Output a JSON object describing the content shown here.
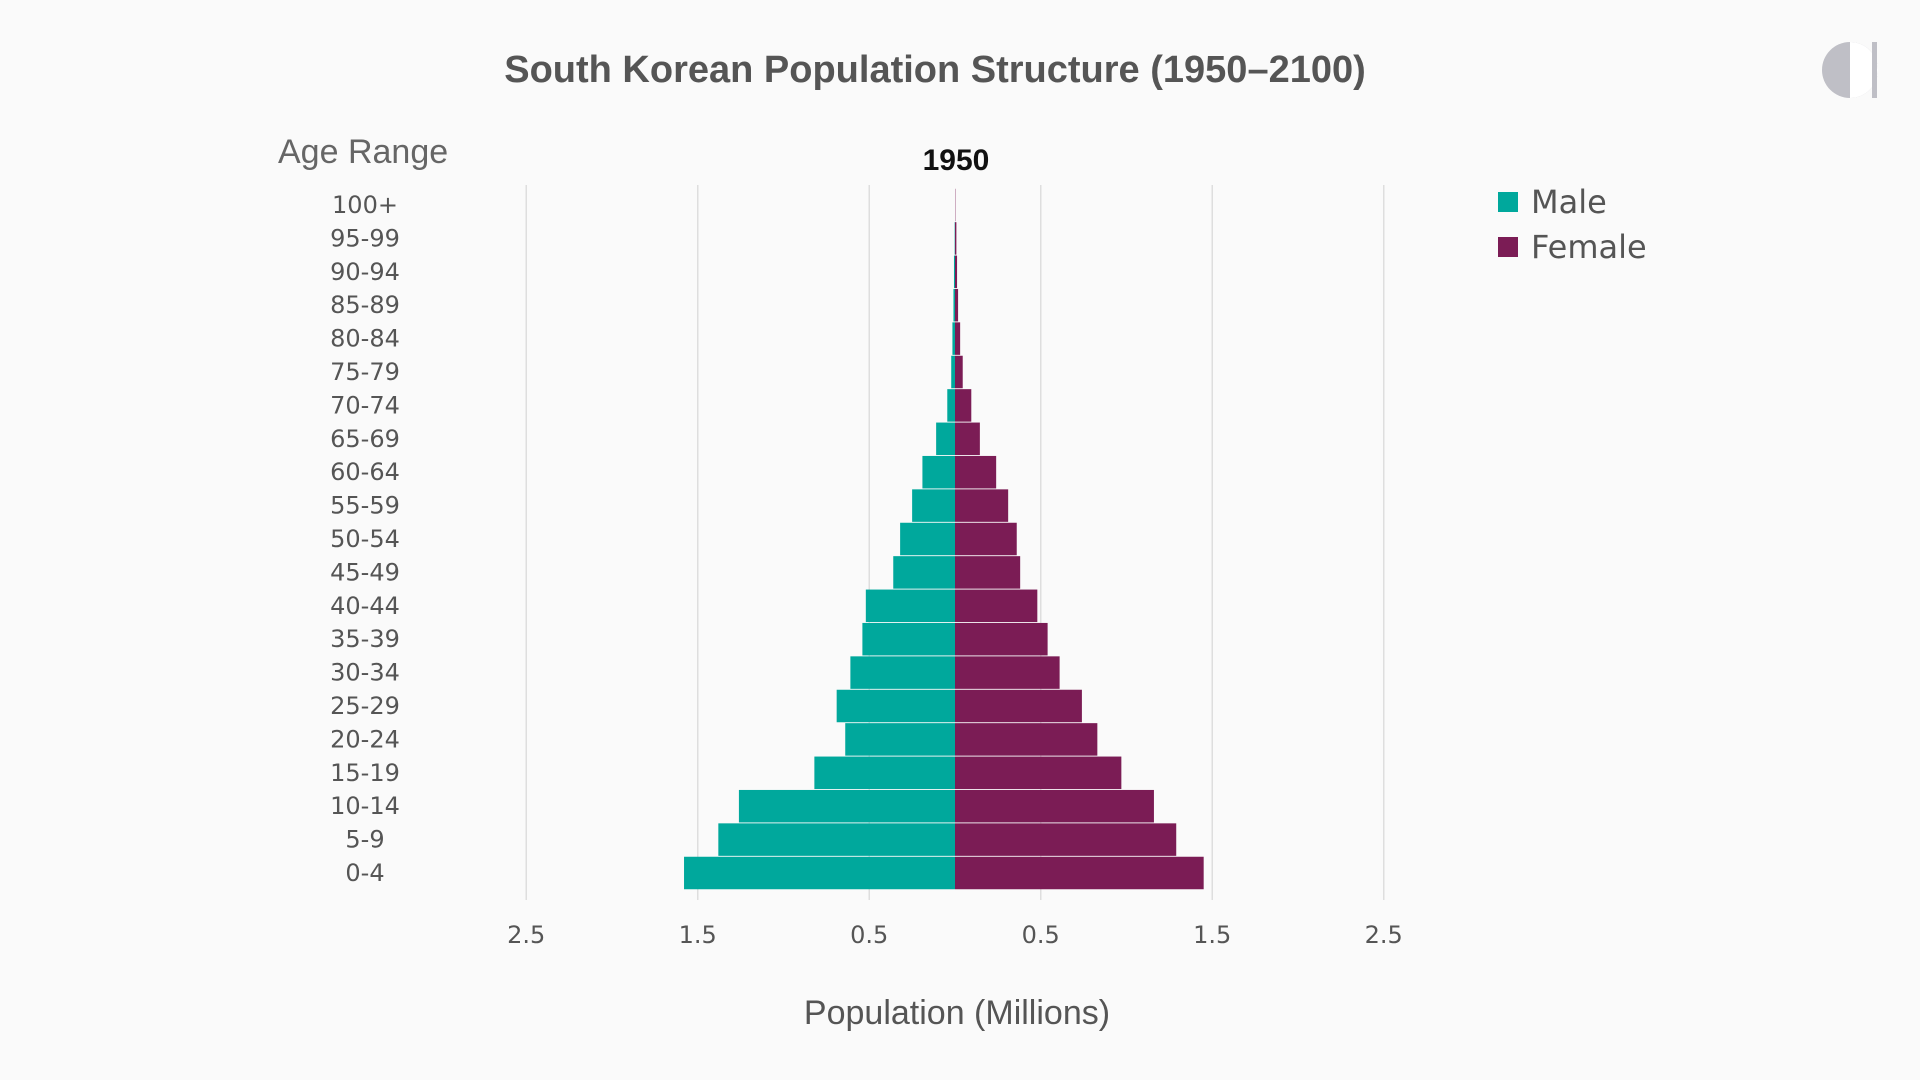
{
  "logo": {
    "icon": "half-circle-logo-icon",
    "color": "#bfbfc6"
  },
  "chart_data": {
    "type": "bar",
    "orientation": "horizontal-pyramid",
    "title": "South Korean Population Structure (1950–2100)",
    "subtitle": "1950",
    "ylabel": "Age Range",
    "xlabel": "Population (Millions)",
    "xlim": [
      -2.5,
      2.5
    ],
    "x_ticks": [
      "2.5",
      "1.5",
      "0.5",
      "0.5",
      "1.5",
      "2.5"
    ],
    "x_tick_values": [
      -2.5,
      -1.5,
      -0.5,
      0.5,
      1.5,
      2.5
    ],
    "grid": true,
    "legend_position": "top-right",
    "categories": [
      "100+",
      "95-99",
      "90-94",
      "85-89",
      "80-84",
      "75-79",
      "70-74",
      "65-69",
      "60-64",
      "55-59",
      "50-54",
      "45-49",
      "40-44",
      "35-39",
      "30-34",
      "25-29",
      "20-24",
      "15-19",
      "10-14",
      "5-9",
      "0-4"
    ],
    "series": [
      {
        "name": "Male",
        "color": "#00a89c",
        "values": [
          0.0,
          0.002,
          0.006,
          0.009,
          0.015,
          0.022,
          0.045,
          0.11,
          0.19,
          0.25,
          0.32,
          0.36,
          0.52,
          0.54,
          0.61,
          0.69,
          0.64,
          0.82,
          1.26,
          1.38,
          1.58
        ]
      },
      {
        "name": "Female",
        "color": "#7b1c55",
        "values": [
          0.002,
          0.008,
          0.012,
          0.018,
          0.03,
          0.045,
          0.095,
          0.145,
          0.24,
          0.31,
          0.36,
          0.38,
          0.48,
          0.54,
          0.61,
          0.74,
          0.83,
          0.97,
          1.16,
          1.29,
          1.45
        ]
      }
    ]
  }
}
